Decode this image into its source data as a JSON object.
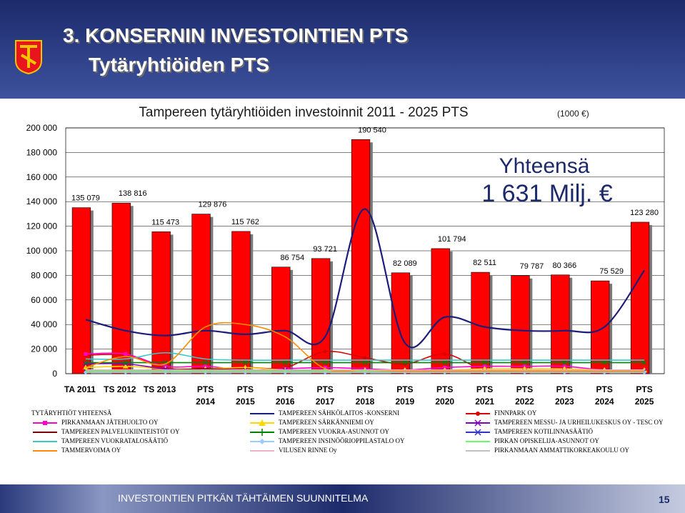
{
  "slide": {
    "title_line1": "3. KONSERNIN INVESTOINTIEN PTS",
    "title_line2": "Tytäryhtiöiden PTS",
    "footer": "INVESTOINTIEN PITKÄN TÄHTÄIMEN SUUNNITELMA",
    "page_number": "15"
  },
  "colors": {
    "bar": "#ff0000",
    "background_top": "#1c2a6b",
    "plot_area": "#ffffff",
    "logo_red": "#e8161c",
    "logo_yellow": "#f2c500"
  },
  "chart_data": {
    "type": "bar",
    "title": "Tampereen tytäryhtiöiden investoinnit 2011 - 2025 PTS",
    "title_unit": "(1000 €)",
    "annotation_line1": "Yhteensä",
    "annotation_line2": "1 631 Milj. €",
    "categories": [
      [
        "TA 2011"
      ],
      [
        "TS 2012"
      ],
      [
        "TS 2013"
      ],
      [
        "PTS",
        "2014"
      ],
      [
        "PTS",
        "2015"
      ],
      [
        "PTS",
        "2016"
      ],
      [
        "PTS",
        "2017"
      ],
      [
        "PTS",
        "2018"
      ],
      [
        "PTS",
        "2019"
      ],
      [
        "PTS",
        "2020"
      ],
      [
        "PTS",
        "2021"
      ],
      [
        "PTS",
        "2022"
      ],
      [
        "PTS",
        "2023"
      ],
      [
        "PTS",
        "2024"
      ],
      [
        "PTS",
        "2025"
      ]
    ],
    "ylim": [
      0,
      200000
    ],
    "yticks": [
      "0",
      "20 000",
      "40 000",
      "60 000",
      "80 000",
      "100 000",
      "120 000",
      "140 000",
      "160 000",
      "180 000",
      "200 000"
    ],
    "bar_series": {
      "name": "TYTÄRYHTIÖT YHTEENSÄ",
      "values": [
        135079,
        138816,
        115473,
        129876,
        115762,
        86754,
        93721,
        190540,
        82089,
        101794,
        82511,
        79787,
        80366,
        75529,
        123280
      ],
      "labels": [
        "135 079",
        "138 816",
        "115 473",
        "129 876",
        "115 762",
        "86 754",
        "93 721",
        "190 540",
        "82 089",
        "101 794",
        "82 511",
        "79 787",
        "80 366",
        "75 529",
        "123 280"
      ]
    },
    "line_series": [
      {
        "name": "TAMPEREEN SÄHKÖLAITOS -KONSERNI",
        "color": "#1c1c7a",
        "marker": "none",
        "values": [
          44000,
          35000,
          31000,
          35000,
          32000,
          35000,
          30000,
          134000,
          25000,
          46000,
          38000,
          35000,
          35000,
          38000,
          84000
        ]
      },
      {
        "name": "FINNPARK OY",
        "color": "#d90000",
        "marker": "circle",
        "values": [
          15000,
          15000,
          5000,
          3000,
          5000,
          5000,
          18000,
          13000,
          8000,
          16000,
          3000,
          3000,
          3000,
          3000,
          3000
        ]
      },
      {
        "name": "PIRKANMAAN JÄTEHUOLTO OY",
        "color": "#ff00cc",
        "marker": "square",
        "values": [
          16000,
          16000,
          6000,
          6000,
          3000,
          4000,
          5000,
          4000,
          3000,
          5000,
          6000,
          6000,
          6000,
          3000,
          3000
        ]
      },
      {
        "name": "TAMPEREEN SÄRKÄNNIEMI OY",
        "color": "#ffd700",
        "marker": "triangle",
        "values": [
          5000,
          6000,
          4000,
          4000,
          5000,
          3000,
          3000,
          3000,
          3000,
          3000,
          4000,
          4000,
          4000,
          3000,
          3000
        ]
      },
      {
        "name": "TAMPEREEN MESSU- JA URHEILUKESKUS OY - TESC OY",
        "color": "#8000c0",
        "marker": "x",
        "values": [
          8000,
          8000,
          4000,
          3000,
          3000,
          3000,
          2000,
          2000,
          2000,
          2000,
          2000,
          2000,
          2000,
          2000,
          2000
        ]
      },
      {
        "name": "TAMPEREEN PALVELUKIINTEISTÖT OY",
        "color": "#800000",
        "marker": "none",
        "values": [
          3000,
          3000,
          3000,
          4000,
          3000,
          3000,
          3000,
          3000,
          3000,
          3000,
          3000,
          3000,
          3000,
          3000,
          3000
        ]
      },
      {
        "name": "TAMPEREEN VUOKRA-ASUNNOT OY",
        "color": "#008000",
        "marker": "plus",
        "values": [
          9000,
          9000,
          9000,
          9000,
          9000,
          9000,
          9000,
          9000,
          9000,
          9000,
          9000,
          9000,
          9000,
          9000,
          9000
        ]
      },
      {
        "name": "TAMPEREEN KOTILINNASÄÄTIÖ",
        "color": "#3333cc",
        "marker": "star",
        "values": [
          2000,
          2000,
          2000,
          2000,
          2000,
          2000,
          2000,
          2000,
          2000,
          2000,
          2000,
          2000,
          2000,
          2000,
          2000
        ]
      },
      {
        "name": "TAMPEREEN VUOKRATALOSÄÄTIÖ",
        "color": "#33cccc",
        "marker": "none",
        "values": [
          12000,
          12000,
          17000,
          12000,
          11000,
          11000,
          11000,
          11000,
          11000,
          11000,
          11000,
          11000,
          11000,
          11000,
          11000
        ]
      },
      {
        "name": "TAMPEREEN INSINÖÖRIOPPILASTALO OY",
        "color": "#99ccff",
        "marker": "diamond",
        "values": [
          1000,
          1000,
          1000,
          1000,
          1000,
          1000,
          1000,
          1000,
          1000,
          1000,
          1000,
          1000,
          1000,
          1000,
          1000
        ]
      },
      {
        "name": "PIRKAN OPISKELIJA-ASUNNOT OY",
        "color": "#66ff66",
        "marker": "none",
        "values": [
          2000,
          2000,
          2000,
          2000,
          2000,
          2000,
          2000,
          2000,
          2000,
          2000,
          2000,
          2000,
          2000,
          2000,
          2000
        ]
      },
      {
        "name": "TAMMERVOIMA OY",
        "color": "#ff8c00",
        "marker": "none",
        "values": [
          5000,
          14000,
          8000,
          38000,
          40000,
          30000,
          4000,
          3000,
          2000,
          2000,
          2000,
          2000,
          2000,
          2000,
          2000
        ]
      },
      {
        "name": "VILUSEN RINNE Oy",
        "color": "#e6b3c9",
        "marker": "none",
        "values": [
          3000,
          3000,
          3000,
          3000,
          3000,
          3000,
          3000,
          3000,
          3000,
          3000,
          3000,
          3000,
          3000,
          3000,
          3000
        ]
      },
      {
        "name": "PIRKANMAAN AMMATTIKORKEAKOULU OY",
        "color": "#c0c0c0",
        "marker": "none",
        "values": [
          1000,
          1000,
          1000,
          1000,
          1000,
          1000,
          1000,
          1000,
          1000,
          1000,
          1000,
          1000,
          1000,
          1000,
          1000
        ]
      }
    ],
    "legend_placement": "bottom",
    "grid": "horizontal"
  }
}
